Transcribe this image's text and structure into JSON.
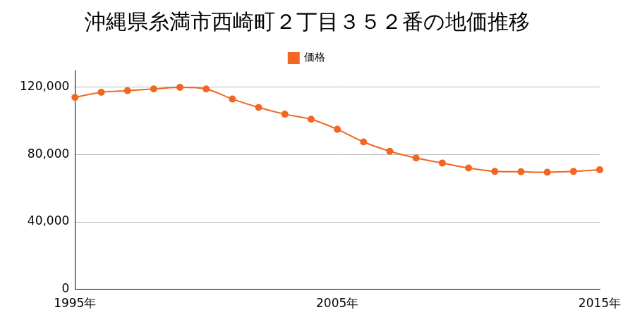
{
  "chart_data": {
    "type": "line",
    "title": "沖縄県糸満市西崎町２丁目３５２番の地価推移",
    "categories": [
      "1995年",
      null,
      null,
      null,
      null,
      null,
      null,
      null,
      null,
      null,
      "2005年",
      null,
      null,
      null,
      null,
      null,
      null,
      null,
      null,
      null,
      "2015年"
    ],
    "series": [
      {
        "name": "価格",
        "color": "#f26522",
        "marker": "circle",
        "values": [
          114000,
          117000,
          118000,
          119000,
          120000,
          119000,
          113000,
          108000,
          104000,
          101000,
          95000,
          87500,
          82000,
          78000,
          75000,
          72000,
          70000,
          69800,
          69500,
          70000,
          71000
        ]
      }
    ],
    "ylim": [
      0,
      130000
    ],
    "yticks": [
      0,
      {
        "value": 40000,
        "label": "40,000"
      },
      {
        "value": 80000,
        "label": "80,000"
      },
      {
        "value": 120000,
        "label": "120,000"
      }
    ],
    "grid": true,
    "legend": "top"
  }
}
